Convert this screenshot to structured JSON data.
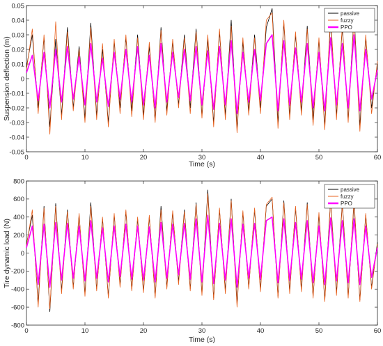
{
  "chart_data": [
    {
      "type": "line",
      "xlabel": "Time (s)",
      "ylabel": "Suspension deflection (m)",
      "xlim": [
        0,
        60
      ],
      "ylim": [
        -0.05,
        0.05
      ],
      "xticks": [
        0,
        10,
        20,
        30,
        40,
        50,
        60
      ],
      "yticks": [
        -0.05,
        -0.04,
        -0.03,
        -0.02,
        -0.01,
        0,
        0.01,
        0.02,
        0.03,
        0.04,
        0.05
      ],
      "xtick_labels": [
        "0",
        "10",
        "20",
        "30",
        "40",
        "50",
        "60"
      ],
      "ytick_labels": [
        "-0.05",
        "-0.04",
        "-0.03",
        "-0.02",
        "-0.01",
        "0",
        "0.01",
        "0.02",
        "0.03",
        "0.04",
        "0.05"
      ],
      "grid": false,
      "legend_position": "top-right",
      "series": [
        {
          "name": "passive",
          "color": "#000000",
          "x": [
            0,
            1,
            2,
            3,
            4,
            5,
            6,
            7,
            8,
            9,
            10,
            11,
            12,
            13,
            14,
            15,
            16,
            17,
            18,
            19,
            20,
            21,
            22,
            23,
            24,
            25,
            26,
            27,
            28,
            29,
            30,
            31,
            32,
            33,
            34,
            35,
            36,
            37,
            38,
            39,
            40,
            41,
            42,
            43,
            44,
            45,
            46,
            47,
            48,
            49,
            50,
            51,
            52,
            53,
            54,
            55,
            56,
            57,
            58,
            59,
            60
          ],
          "values": [
            0.008,
            0.03,
            -0.02,
            0.028,
            -0.033,
            0.027,
            -0.025,
            0.035,
            -0.02,
            0.022,
            -0.027,
            0.038,
            -0.025,
            0.02,
            -0.03,
            0.025,
            -0.02,
            0.028,
            -0.022,
            0.03,
            -0.025,
            0.022,
            -0.028,
            0.035,
            -0.022,
            0.025,
            -0.018,
            0.03,
            -0.02,
            0.034,
            -0.025,
            0.027,
            -0.03,
            0.032,
            -0.025,
            0.04,
            -0.034,
            0.025,
            -0.022,
            0.03,
            -0.02,
            0.035,
            0.048,
            -0.03,
            0.038,
            -0.025,
            0.03,
            -0.022,
            0.036,
            -0.028,
            0.026,
            -0.032,
            0.04,
            -0.025,
            0.035,
            -0.028,
            0.044,
            -0.032,
            0.028,
            -0.02,
            0.01
          ]
        },
        {
          "name": "fuzzy",
          "color": "#e8601c",
          "x": [
            0,
            1,
            2,
            3,
            4,
            5,
            6,
            7,
            8,
            9,
            10,
            11,
            12,
            13,
            14,
            15,
            16,
            17,
            18,
            19,
            20,
            21,
            22,
            23,
            24,
            25,
            26,
            27,
            28,
            29,
            30,
            31,
            32,
            33,
            34,
            35,
            36,
            37,
            38,
            39,
            40,
            41,
            42,
            43,
            44,
            45,
            46,
            47,
            48,
            49,
            50,
            51,
            52,
            53,
            54,
            55,
            56,
            57,
            58,
            59,
            60
          ],
          "values": [
            0.006,
            0.034,
            -0.024,
            0.03,
            -0.038,
            0.039,
            -0.028,
            0.032,
            -0.022,
            0.02,
            -0.03,
            0.035,
            -0.028,
            0.024,
            -0.033,
            0.027,
            -0.024,
            0.03,
            -0.026,
            0.028,
            -0.028,
            0.025,
            -0.03,
            0.033,
            -0.025,
            0.027,
            -0.02,
            0.028,
            -0.024,
            0.032,
            -0.027,
            0.03,
            -0.033,
            0.034,
            -0.028,
            0.036,
            -0.037,
            0.028,
            -0.025,
            0.028,
            -0.024,
            0.04,
            0.045,
            -0.034,
            0.04,
            -0.028,
            0.032,
            -0.025,
            0.034,
            -0.032,
            0.028,
            -0.035,
            0.044,
            -0.028,
            0.037,
            -0.03,
            0.042,
            -0.036,
            0.03,
            -0.024,
            0.012
          ]
        },
        {
          "name": "PPO",
          "color": "#ff00ff",
          "x": [
            0,
            1,
            2,
            3,
            4,
            5,
            6,
            7,
            8,
            9,
            10,
            11,
            12,
            13,
            14,
            15,
            16,
            17,
            18,
            19,
            20,
            21,
            22,
            23,
            24,
            25,
            26,
            27,
            28,
            29,
            30,
            31,
            32,
            33,
            34,
            35,
            36,
            37,
            38,
            39,
            40,
            41,
            42,
            43,
            44,
            45,
            46,
            47,
            48,
            49,
            50,
            51,
            52,
            53,
            54,
            55,
            56,
            57,
            58,
            59,
            60
          ],
          "values": [
            0.004,
            0.016,
            -0.015,
            0.018,
            -0.02,
            0.02,
            -0.016,
            0.022,
            -0.014,
            0.015,
            -0.018,
            0.024,
            -0.016,
            0.014,
            -0.019,
            0.018,
            -0.014,
            0.02,
            -0.016,
            0.022,
            -0.018,
            0.016,
            -0.02,
            0.024,
            -0.016,
            0.018,
            -0.013,
            0.02,
            -0.015,
            0.022,
            -0.018,
            0.019,
            -0.021,
            0.022,
            -0.018,
            0.026,
            -0.024,
            0.018,
            -0.016,
            0.02,
            -0.015,
            0.024,
            0.03,
            -0.022,
            0.026,
            -0.018,
            0.021,
            -0.016,
            0.024,
            -0.02,
            0.018,
            -0.022,
            0.028,
            -0.018,
            0.024,
            -0.02,
            0.03,
            -0.022,
            0.02,
            -0.014,
            0.006
          ]
        }
      ]
    },
    {
      "type": "line",
      "xlabel": "Time (s)",
      "ylabel": "Tire dynamic load (N)",
      "xlim": [
        0,
        60
      ],
      "ylim": [
        -800,
        800
      ],
      "xticks": [
        0,
        10,
        20,
        30,
        40,
        50,
        60
      ],
      "yticks": [
        -800,
        -600,
        -400,
        -200,
        0,
        200,
        400,
        600,
        800
      ],
      "xtick_labels": [
        "0",
        "10",
        "20",
        "30",
        "40",
        "50",
        "60"
      ],
      "ytick_labels": [
        "-800",
        "-600",
        "-400",
        "-200",
        "0",
        "200",
        "400",
        "600",
        "800"
      ],
      "grid": false,
      "legend_position": "top-right",
      "series": [
        {
          "name": "passive",
          "color": "#000000",
          "x": [
            0,
            1,
            2,
            3,
            4,
            5,
            6,
            7,
            8,
            9,
            10,
            11,
            12,
            13,
            14,
            15,
            16,
            17,
            18,
            19,
            20,
            21,
            22,
            23,
            24,
            25,
            26,
            27,
            28,
            29,
            30,
            31,
            32,
            33,
            34,
            35,
            36,
            37,
            38,
            39,
            40,
            41,
            42,
            43,
            44,
            45,
            46,
            47,
            48,
            49,
            50,
            51,
            52,
            53,
            54,
            55,
            56,
            57,
            58,
            59,
            60
          ],
          "values": [
            100,
            420,
            -560,
            520,
            -650,
            550,
            -420,
            480,
            -380,
            420,
            -450,
            560,
            -400,
            380,
            -480,
            420,
            -350,
            460,
            -400,
            380,
            -420,
            400,
            -480,
            520,
            -380,
            450,
            -320,
            480,
            -400,
            560,
            -450,
            700,
            -500,
            480,
            -420,
            600,
            -560,
            450,
            -380,
            480,
            -400,
            520,
            600,
            -480,
            580,
            -420,
            500,
            -400,
            560,
            -480,
            420,
            -520,
            600,
            -440,
            560,
            -480,
            560,
            -520,
            420,
            -380,
            120
          ]
        },
        {
          "name": "fuzzy",
          "color": "#e8601c",
          "x": [
            0,
            1,
            2,
            3,
            4,
            5,
            6,
            7,
            8,
            9,
            10,
            11,
            12,
            13,
            14,
            15,
            16,
            17,
            18,
            19,
            20,
            21,
            22,
            23,
            24,
            25,
            26,
            27,
            28,
            29,
            30,
            31,
            32,
            33,
            34,
            35,
            36,
            37,
            38,
            39,
            40,
            41,
            42,
            43,
            44,
            45,
            46,
            47,
            48,
            49,
            50,
            51,
            52,
            53,
            54,
            55,
            56,
            57,
            58,
            59,
            60
          ],
          "values": [
            80,
            480,
            -600,
            500,
            -620,
            520,
            -450,
            460,
            -400,
            440,
            -480,
            520,
            -420,
            400,
            -500,
            440,
            -380,
            480,
            -420,
            400,
            -440,
            420,
            -500,
            480,
            -400,
            470,
            -350,
            460,
            -420,
            540,
            -470,
            660,
            -520,
            500,
            -450,
            580,
            -600,
            470,
            -400,
            500,
            -430,
            540,
            620,
            -500,
            560,
            -450,
            520,
            -430,
            540,
            -500,
            450,
            -540,
            580,
            -470,
            540,
            -500,
            600,
            -540,
            440,
            -400,
            100
          ]
        },
        {
          "name": "PPO",
          "color": "#ff00ff",
          "x": [
            0,
            1,
            2,
            3,
            4,
            5,
            6,
            7,
            8,
            9,
            10,
            11,
            12,
            13,
            14,
            15,
            16,
            17,
            18,
            19,
            20,
            21,
            22,
            23,
            24,
            25,
            26,
            27,
            28,
            29,
            30,
            31,
            32,
            33,
            34,
            35,
            36,
            37,
            38,
            39,
            40,
            41,
            42,
            43,
            44,
            45,
            46,
            47,
            48,
            49,
            50,
            51,
            52,
            53,
            54,
            55,
            56,
            57,
            58,
            59,
            60
          ],
          "values": [
            60,
            300,
            -350,
            320,
            -380,
            340,
            -300,
            330,
            -280,
            300,
            -310,
            360,
            -280,
            280,
            -320,
            300,
            -260,
            320,
            -290,
            300,
            -300,
            290,
            -320,
            340,
            -280,
            320,
            -240,
            330,
            -290,
            380,
            -320,
            420,
            -340,
            330,
            -300,
            380,
            -380,
            320,
            -280,
            330,
            -290,
            360,
            400,
            -330,
            380,
            -300,
            340,
            -290,
            360,
            -330,
            300,
            -350,
            390,
            -310,
            360,
            -330,
            380,
            -350,
            300,
            -270,
            60
          ]
        }
      ]
    }
  ]
}
